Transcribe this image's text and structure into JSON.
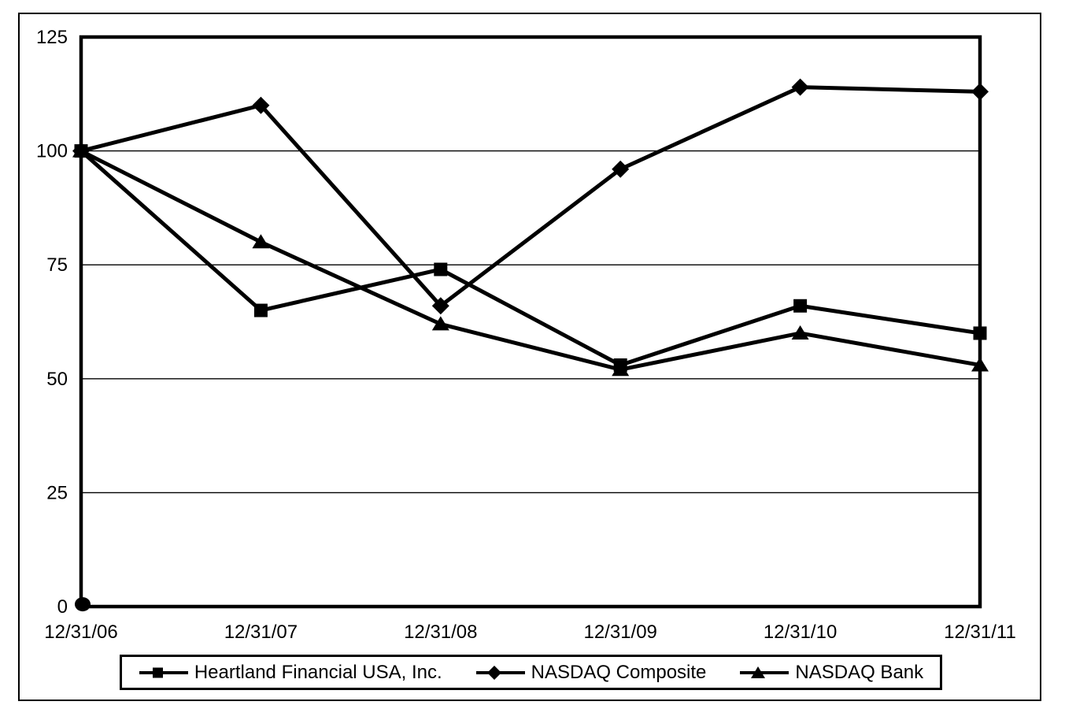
{
  "chart_data": {
    "type": "line",
    "title": "",
    "xlabel": "",
    "ylabel": "",
    "categories": [
      "12/31/06",
      "12/31/07",
      "12/31/08",
      "12/31/09",
      "12/31/10",
      "12/31/11"
    ],
    "series": [
      {
        "name": "Heartland Financial USA, Inc.",
        "marker": "square",
        "color": "#000000",
        "values": [
          100,
          65,
          74,
          53,
          66,
          60
        ]
      },
      {
        "name": "NASDAQ Composite",
        "marker": "diamond",
        "color": "#000000",
        "values": [
          100,
          110,
          66,
          96,
          114,
          113
        ]
      },
      {
        "name": "NASDAQ Bank",
        "marker": "triangle",
        "color": "#000000",
        "values": [
          100,
          80,
          62,
          52,
          60,
          53
        ]
      }
    ],
    "y_ticks": [
      0,
      25,
      50,
      75,
      100,
      125
    ],
    "ylim": [
      0,
      125
    ],
    "grid": "horizontal",
    "legend_position": "bottom",
    "background": "#ffffff",
    "line_color": "#000000",
    "origin_dot": {
      "category": "12/31/06",
      "value": 0.5,
      "shape": "circle"
    }
  }
}
